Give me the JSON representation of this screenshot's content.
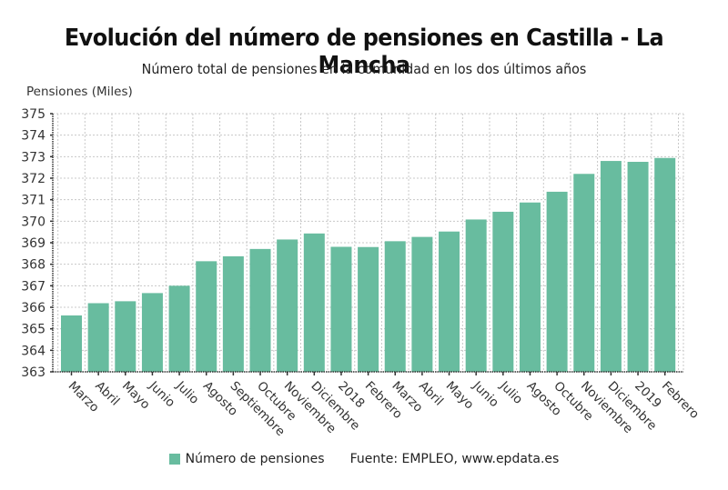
{
  "chart_data": {
    "type": "bar",
    "title": "Evolución del número de pensiones en Castilla - La Mancha",
    "subtitle": "Número total de pensiones en la comunidad en los dos últimos años",
    "xlabel": "",
    "ylabel": "Pensiones (Miles)",
    "ylim": [
      363,
      375
    ],
    "yticks": [
      363,
      364,
      365,
      366,
      367,
      368,
      369,
      370,
      371,
      372,
      373,
      374,
      375
    ],
    "grid": true,
    "legend_position": "bottom",
    "categories": [
      "Marzo",
      "Abril",
      "Mayo",
      "Junio",
      "Julio",
      "Agosto",
      "Septiembre",
      "Octubre",
      "Noviembre",
      "Diciembre",
      "2018",
      "Febrero",
      "Marzo",
      "Abril",
      "Mayo",
      "Junio",
      "Julio",
      "Agosto",
      "Octubre",
      "Noviembre",
      "Diciembre",
      "2019",
      "Febrero"
    ],
    "series": [
      {
        "name": "Número de pensiones",
        "color": "#68bc9f",
        "values": [
          365.62,
          366.19,
          366.28,
          366.66,
          367.0,
          368.14,
          368.37,
          368.71,
          369.15,
          369.43,
          368.81,
          368.8,
          369.07,
          369.27,
          369.52,
          370.08,
          370.44,
          370.87,
          371.37,
          372.2,
          372.8,
          372.76,
          372.94
        ]
      }
    ]
  },
  "legend": {
    "series_label": "Número de pensiones",
    "source": "Fuente: EMPLEO, www.epdata.es"
  }
}
